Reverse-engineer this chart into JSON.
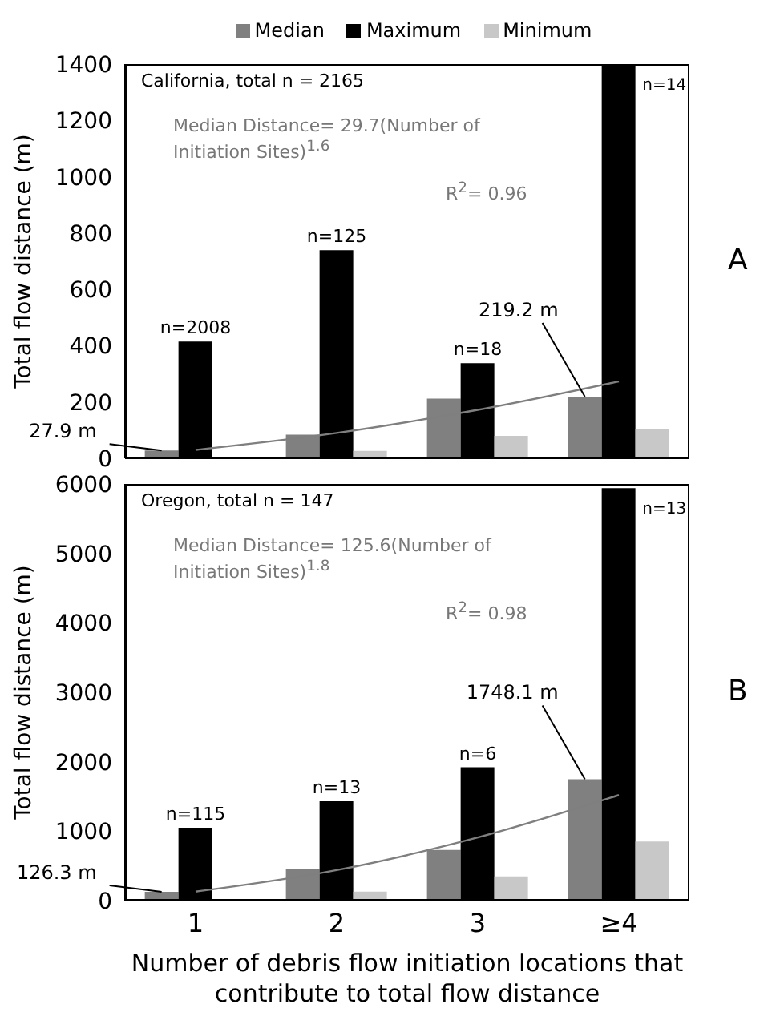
{
  "chart_data": [
    {
      "type": "bar",
      "categories": [
        "1",
        "2",
        "3",
        "≥4"
      ],
      "ylabel": "Total flow distance (m)",
      "ylim": [
        0,
        1400
      ],
      "yticks": [
        0,
        200,
        400,
        600,
        800,
        1000,
        1200,
        1400
      ],
      "tick_labels": "y",
      "legend": "top",
      "series": [
        {
          "name": "Median",
          "color": "#808080",
          "values": [
            27.9,
            84,
            212,
            219.2
          ],
          "value_labels": [
            "27.9 m",
            null,
            null,
            "219.2 m"
          ]
        },
        {
          "name": "Maximum",
          "color": "#000000",
          "values": [
            415,
            739,
            338,
            1400
          ]
        },
        {
          "name": "Minimum",
          "color": "#c8c8c8",
          "values": [
            null,
            26,
            80,
            104
          ]
        },
        {
          "type": "line",
          "color": "#7f7f7f",
          "values": [
            30,
            90,
            172,
            273
          ]
        }
      ],
      "annotations": [
        "California, total n = 2165",
        "Median Distance= 29.7(Number of Initiation Sites)$^{1.6}$",
        "R$^{2}$= 0.96",
        "A",
        {
          "text": "n=2008",
          "x": "1",
          "y": 415
        },
        {
          "text": "n=125",
          "x": "2",
          "y": 739
        },
        {
          "text": "n=18",
          "x": "3",
          "y": 338
        },
        {
          "text": "n=14",
          "x": "≥4",
          "y": 1400
        }
      ]
    },
    {
      "type": "bar",
      "categories": [
        "1",
        "2",
        "3",
        "≥4"
      ],
      "xlabel": "Number of debris flow initiation locations that contribute to total flow distance",
      "ylabel": "Total flow distance (m)",
      "ylim": [
        0,
        6000
      ],
      "yticks": [
        0,
        1000,
        2000,
        3000,
        4000,
        5000,
        6000
      ],
      "series": [
        {
          "color": "#808080",
          "values": [
            126.3,
            460,
            730,
            1748.1
          ],
          "value_labels": [
            "126.3 m",
            null,
            null,
            "1748.1 m"
          ]
        },
        {
          "color": "#000000",
          "values": [
            1050,
            1430,
            1920,
            5940
          ]
        },
        {
          "color": "#c8c8c8",
          "values": [
            null,
            130,
            350,
            850
          ]
        },
        {
          "type": "line",
          "color": "#7f7f7f",
          "values": [
            130,
            440,
            910,
            1520
          ]
        }
      ],
      "annotations": [
        "Oregon, total n = 147",
        "Median Distance= 125.6(Number of Initiation Sites)$^{1.8}$",
        "R$^{2}$= 0.98",
        "B",
        {
          "text": "n=115",
          "x": "1",
          "y": 1050
        },
        {
          "text": "n=13",
          "x": "2",
          "y": 1430
        },
        {
          "text": "n=6",
          "x": "3",
          "y": 1920
        },
        {
          "text": "n=13",
          "x": "≥4",
          "y": 5940
        }
      ]
    }
  ]
}
